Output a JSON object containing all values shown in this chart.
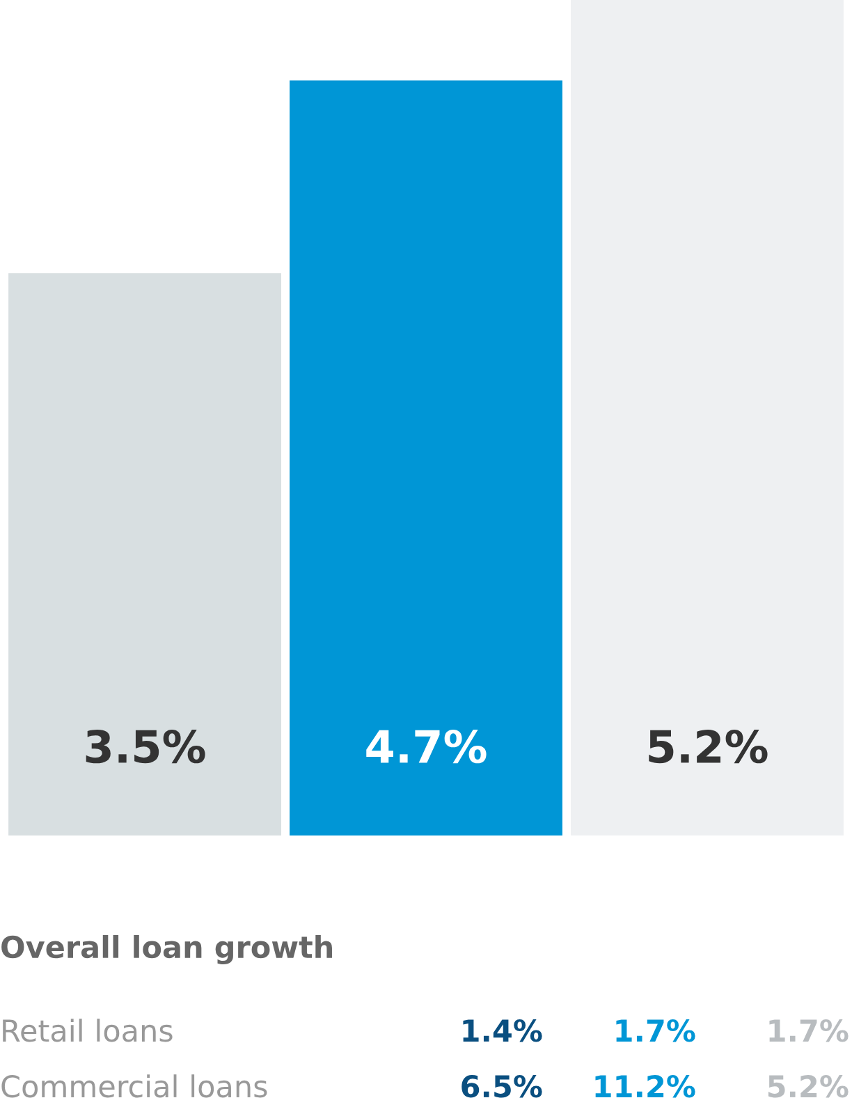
{
  "chart_data": [
    {
      "type": "bar",
      "categories": [
        null,
        null,
        null
      ],
      "values": [
        3.5,
        4.7,
        5.2
      ],
      "colors": [
        "#d8dfe1",
        "#0096d6",
        "#eef0f2"
      ],
      "value_labels": [
        "3.5%",
        "4.7%",
        "5.2%"
      ],
      "ylim": [
        0,
        5.2
      ],
      "tick_labels": false
    },
    {
      "type": "other",
      "title": "Overall loan growth",
      "categories": [
        "Retail loans",
        "Commercial loans"
      ],
      "series": [
        {
          "color": "#0a4f80",
          "values": [
            1.4,
            6.5
          ],
          "value_labels": [
            "1.4%",
            "6.5%"
          ]
        },
        {
          "color": "#0096d6",
          "values": [
            1.7,
            11.2
          ],
          "value_labels": [
            "1.7%",
            "11.2%"
          ]
        },
        {
          "color": "#b8bcbf",
          "values": [
            1.7,
            5.2
          ],
          "value_labels": [
            "1.7%",
            "5.2%"
          ]
        }
      ]
    }
  ]
}
